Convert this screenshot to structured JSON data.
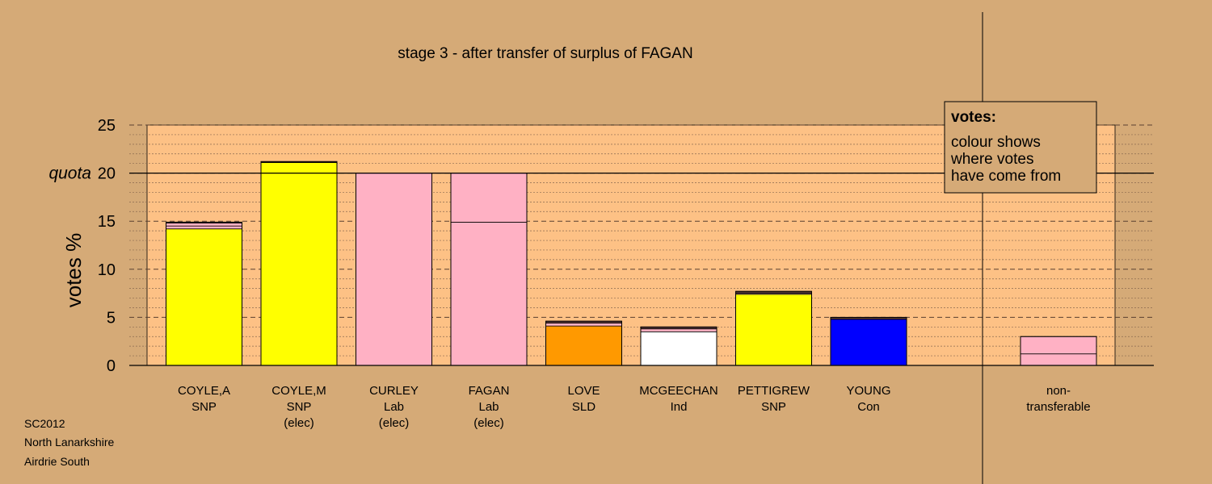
{
  "chart_data": {
    "type": "bar",
    "title": "stage 3 - after transfer of surplus of FAGAN",
    "ylabel": "votes %",
    "ylim": [
      0,
      25
    ],
    "yticks": [
      "0",
      "5",
      "10",
      "15",
      "20",
      "25"
    ],
    "quota_label": "quota",
    "quota": 20,
    "legend": {
      "title": "votes:",
      "lines": [
        "colour shows",
        "where votes",
        "have come from"
      ]
    },
    "colors": {
      "SNP": "#ffff00",
      "Lab": "#ffb1c4",
      "SLD": "#ff9900",
      "Ind": "#ffffff",
      "Con": "#0000ff",
      "outline_dark": "#5a3a3a",
      "plot_bg": "#fdc185",
      "page_bg": "#d5aa77"
    },
    "bars": [
      {
        "labels": [
          "COYLE,A",
          "SNP"
        ],
        "total": 14.9,
        "segments": [
          {
            "party": "SNP",
            "value": 14.2
          },
          {
            "party": "Lab",
            "value": 0.3
          },
          {
            "party": "Lab",
            "value": 0.3
          },
          {
            "party": "outline_dark",
            "value": 0.1
          }
        ]
      },
      {
        "labels": [
          "COYLE,M",
          "SNP",
          "(elec)"
        ],
        "total": 21.2,
        "segments": [
          {
            "party": "SNP",
            "value": 21.1
          },
          {
            "party": "outline_dark",
            "value": 0.1
          }
        ]
      },
      {
        "labels": [
          "CURLEY",
          "Lab",
          "(elec)"
        ],
        "total": 20.0,
        "segments": [
          {
            "party": "Lab",
            "value": 20.0
          }
        ]
      },
      {
        "labels": [
          "FAGAN",
          "Lab",
          "(elec)"
        ],
        "total": 20.0,
        "segments": [
          {
            "party": "Lab",
            "value": 14.9
          },
          {
            "party": "Lab",
            "value": 5.1
          }
        ]
      },
      {
        "labels": [
          "LOVE",
          "SLD"
        ],
        "total": 4.6,
        "segments": [
          {
            "party": "SLD",
            "value": 4.1
          },
          {
            "party": "Lab",
            "value": 0.3
          },
          {
            "party": "outline_dark",
            "value": 0.2
          }
        ]
      },
      {
        "labels": [
          "MCGEECHAN",
          "Ind"
        ],
        "total": 4.0,
        "segments": [
          {
            "party": "Ind",
            "value": 3.5
          },
          {
            "party": "Lab",
            "value": 0.3
          },
          {
            "party": "outline_dark",
            "value": 0.2
          }
        ]
      },
      {
        "labels": [
          "PETTIGREW",
          "SNP"
        ],
        "total": 7.7,
        "segments": [
          {
            "party": "SNP",
            "value": 7.4
          },
          {
            "party": "Lab",
            "value": 0.1
          },
          {
            "party": "outline_dark",
            "value": 0.2
          }
        ]
      },
      {
        "labels": [
          "YOUNG",
          "Con"
        ],
        "total": 5.0,
        "segments": [
          {
            "party": "Con",
            "value": 4.8
          },
          {
            "party": "outline_dark",
            "value": 0.2
          }
        ]
      }
    ],
    "nontransferable": {
      "labels": [
        "non-",
        "transferable"
      ],
      "total": 3.0,
      "segments": [
        {
          "party": "Lab",
          "value": 1.2
        },
        {
          "party": "Lab",
          "value": 1.8
        }
      ]
    }
  },
  "footer": [
    "SC2012",
    "North Lanarkshire",
    "Airdrie South"
  ]
}
